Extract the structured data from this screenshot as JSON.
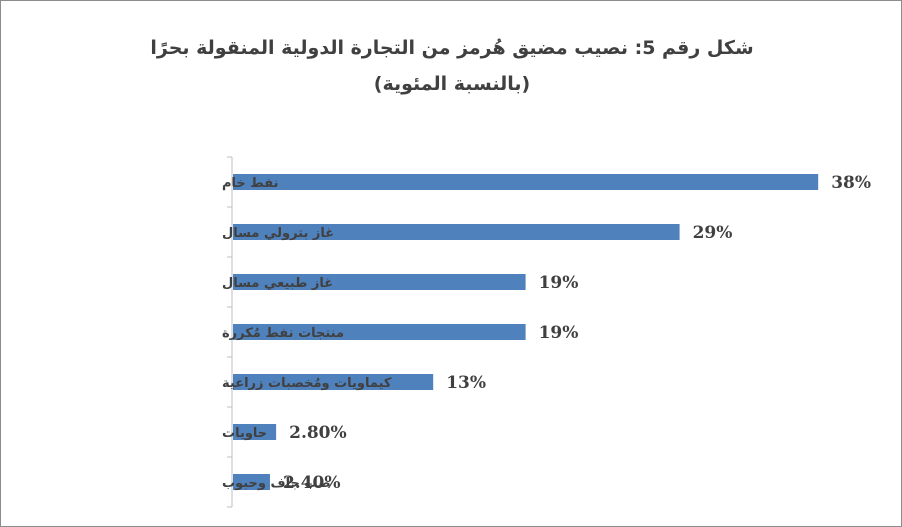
{
  "chart_data": {
    "type": "bar",
    "orientation": "horizontal",
    "title": "شكل رقم 5: نصيب مضيق هُرمز من التجارة الدولية المنقولة بحرًا",
    "subtitle": "(بالنسبة المئوية)",
    "categories": [
      "نفط خام",
      "غاز بترولي مسال",
      "غاز طبيعي مسال",
      "منتجات نفط مُكررة",
      "كيماويات ومُخصبات زراعية",
      "حاويات",
      "صب جاف وحبوب"
    ],
    "values": [
      38,
      29,
      19,
      19,
      13,
      2.8,
      2.4
    ],
    "data_labels": [
      "38%",
      "29%",
      "19%",
      "19%",
      "13%",
      "2.80%",
      "2.40%"
    ],
    "xlim": [
      0,
      40
    ],
    "grid": false,
    "legend": "none",
    "bar_color": "#4f81bd",
    "axis_color": "#bfbfbf"
  }
}
